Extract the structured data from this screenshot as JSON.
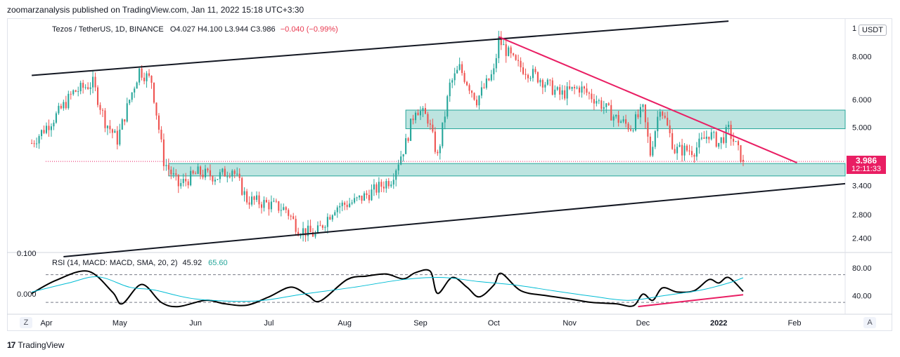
{
  "header": {
    "publisher": "zoomarzanalysis published on TradingView.com, Jan 11, 2022 15:18 UTC+3:30"
  },
  "legend": {
    "symbol": "Tezos / TetherUS, 1D, BINANCE",
    "ohlc": "O4.027 H4.100 L3.944 C3.986",
    "change": "−0.040 (−0.99%)",
    "currency": "USDT"
  },
  "last_price": {
    "value": "3.986",
    "countdown": "12:11:33"
  },
  "rsi_legend": {
    "label": "RSI (14, MACD: MACD, SMA, 20, 2)",
    "rsi_value": "45.92",
    "ma_value": "65.60"
  },
  "footer": {
    "brand": "TradingView"
  },
  "buttons": {
    "zoom_left": "Z",
    "zoom_right": "A"
  },
  "colors": {
    "up": "#26a69a",
    "down": "#ef5350",
    "zone_fill": "#b2dfdb",
    "zone_border": "#26a69a",
    "trend_pink": "#e91e63",
    "channel": "#131722",
    "rsi_line": "#000000",
    "rsi_ma": "#00bcd4"
  },
  "chart_data": [
    {
      "type": "candlestick",
      "scale": "log",
      "ylim": [
        2.2,
        10.2
      ],
      "yticks": [
        "8.000",
        "6.000",
        "5.000",
        "3.400",
        "2.800",
        "2.400"
      ],
      "ytick_values": [
        8.0,
        6.0,
        5.0,
        3.4,
        2.8,
        2.4
      ],
      "top_partial_tick": "1",
      "xticks": [
        "Apr",
        "May",
        "Jun",
        "Jul",
        "Aug",
        "Sep",
        "Oct",
        "Nov",
        "Dec",
        "2022",
        "Feb"
      ],
      "xtick_dates": [
        "2021-04-01",
        "2021-05-01",
        "2021-06-01",
        "2021-07-01",
        "2021-08-01",
        "2021-09-01",
        "2021-10-01",
        "2021-11-01",
        "2021-12-01",
        "2022-01-01",
        "2022-02-01"
      ],
      "close_waypoints": [
        [
          "2021-03-26",
          4.5
        ],
        [
          "2021-04-05",
          5.4
        ],
        [
          "2021-04-12",
          6.3
        ],
        [
          "2021-04-20",
          6.7
        ],
        [
          "2021-04-25",
          5.2
        ],
        [
          "2021-04-30",
          4.6
        ],
        [
          "2021-05-05",
          6.0
        ],
        [
          "2021-05-09",
          7.3
        ],
        [
          "2021-05-14",
          6.8
        ],
        [
          "2021-05-19",
          4.0
        ],
        [
          "2021-05-25",
          3.4
        ],
        [
          "2021-06-02",
          3.7
        ],
        [
          "2021-06-10",
          3.6
        ],
        [
          "2021-06-16",
          3.8
        ],
        [
          "2021-06-22",
          3.1
        ],
        [
          "2021-07-01",
          3.0
        ],
        [
          "2021-07-08",
          2.9
        ],
        [
          "2021-07-13",
          2.55
        ],
        [
          "2021-07-20",
          2.45
        ],
        [
          "2021-07-28",
          2.95
        ],
        [
          "2021-08-05",
          3.05
        ],
        [
          "2021-08-12",
          3.25
        ],
        [
          "2021-08-20",
          3.55
        ],
        [
          "2021-08-26",
          4.5
        ],
        [
          "2021-08-30",
          5.7
        ],
        [
          "2021-09-04",
          5.3
        ],
        [
          "2021-09-08",
          4.1
        ],
        [
          "2021-09-13",
          6.6
        ],
        [
          "2021-09-17",
          7.4
        ],
        [
          "2021-09-24",
          6.0
        ],
        [
          "2021-10-01",
          7.2
        ],
        [
          "2021-10-03",
          8.9
        ],
        [
          "2021-10-10",
          7.6
        ],
        [
          "2021-10-20",
          6.9
        ],
        [
          "2021-10-28",
          6.2
        ],
        [
          "2021-11-05",
          6.5
        ],
        [
          "2021-11-12",
          6.0
        ],
        [
          "2021-11-20",
          5.3
        ],
        [
          "2021-11-26",
          5.0
        ],
        [
          "2021-12-01",
          5.6
        ],
        [
          "2021-12-04",
          4.2
        ],
        [
          "2021-12-08",
          5.8
        ],
        [
          "2021-12-14",
          4.3
        ],
        [
          "2021-12-22",
          4.3
        ],
        [
          "2021-12-28",
          4.8
        ],
        [
          "2022-01-01",
          4.5
        ],
        [
          "2022-01-05",
          4.9
        ],
        [
          "2022-01-11",
          3.986
        ]
      ],
      "zones": [
        {
          "name": "upper-supply-zone",
          "from": "2021-08-26",
          "to_edge": true,
          "low": 4.95,
          "high": 5.6
        },
        {
          "name": "lower-demand-zone",
          "from": "2021-05-21",
          "to_edge": true,
          "low": 3.62,
          "high": 3.93
        }
      ],
      "trendlines": [
        {
          "name": "channel-upper",
          "from": [
            "2021-03-26",
            7.05
          ],
          "to": [
            "2022-01-05",
            10.1
          ]
        },
        {
          "name": "channel-lower",
          "from": [
            "2021-04-08",
            2.12
          ],
          "to_edge": 3.44
        },
        {
          "name": "descending-resistance",
          "from": [
            "2021-10-03",
            9.1
          ],
          "to": [
            "2022-02-02",
            3.95
          ]
        }
      ],
      "current_price": 3.986
    },
    {
      "type": "line",
      "panel": "RSI",
      "ylim": [
        15,
        100
      ],
      "yticks": [
        "80.00",
        "40.00"
      ],
      "ytick_values": [
        80,
        40
      ],
      "levels": [
        70,
        30
      ],
      "side_labels": [
        "0.100",
        "0.000"
      ],
      "series": [
        {
          "name": "RSI",
          "points": [
            [
              "2021-03-26",
              43
            ],
            [
              "2021-04-05",
              62
            ],
            [
              "2021-04-18",
              75
            ],
            [
              "2021-04-28",
              45
            ],
            [
              "2021-05-02",
              28
            ],
            [
              "2021-05-10",
              56
            ],
            [
              "2021-05-18",
              30
            ],
            [
              "2021-05-25",
              24
            ],
            [
              "2021-06-05",
              33
            ],
            [
              "2021-06-13",
              28
            ],
            [
              "2021-06-22",
              26
            ],
            [
              "2021-07-01",
              38
            ],
            [
              "2021-07-10",
              52
            ],
            [
              "2021-07-17",
              40
            ],
            [
              "2021-07-22",
              32
            ],
            [
              "2021-08-02",
              63
            ],
            [
              "2021-08-10",
              68
            ],
            [
              "2021-08-18",
              71
            ],
            [
              "2021-08-25",
              64
            ],
            [
              "2021-08-30",
              73
            ],
            [
              "2021-09-05",
              75
            ],
            [
              "2021-09-08",
              43
            ],
            [
              "2021-09-14",
              66
            ],
            [
              "2021-09-20",
              52
            ],
            [
              "2021-09-25",
              38
            ],
            [
              "2021-10-01",
              55
            ],
            [
              "2021-10-04",
              72
            ],
            [
              "2021-10-12",
              47
            ],
            [
              "2021-10-22",
              40
            ],
            [
              "2021-11-01",
              35
            ],
            [
              "2021-11-10",
              30
            ],
            [
              "2021-11-20",
              28
            ],
            [
              "2021-11-27",
              25
            ],
            [
              "2021-12-01",
              42
            ],
            [
              "2021-12-05",
              33
            ],
            [
              "2021-12-09",
              51
            ],
            [
              "2021-12-15",
              45
            ],
            [
              "2021-12-22",
              47
            ],
            [
              "2021-12-28",
              63
            ],
            [
              "2022-01-01",
              58
            ],
            [
              "2022-01-05",
              66
            ],
            [
              "2022-01-11",
              45.92
            ]
          ]
        },
        {
          "name": "MA",
          "points": [
            [
              "2021-03-26",
              45
            ],
            [
              "2021-04-10",
              58
            ],
            [
              "2021-04-22",
              67
            ],
            [
              "2021-05-05",
              52
            ],
            [
              "2021-05-15",
              48
            ],
            [
              "2021-06-01",
              35
            ],
            [
              "2021-06-25",
              32
            ],
            [
              "2021-07-15",
              42
            ],
            [
              "2021-08-05",
              52
            ],
            [
              "2021-08-25",
              63
            ],
            [
              "2021-09-10",
              66
            ],
            [
              "2021-09-25",
              60
            ],
            [
              "2021-10-10",
              55
            ],
            [
              "2021-10-25",
              47
            ],
            [
              "2021-11-10",
              39
            ],
            [
              "2021-11-25",
              33
            ],
            [
              "2021-12-10",
              40
            ],
            [
              "2021-12-25",
              48
            ],
            [
              "2022-01-05",
              58
            ],
            [
              "2022-01-11",
              65.6
            ]
          ]
        }
      ],
      "divergence_line": {
        "from": [
          "2021-11-29",
          24
        ],
        "to": [
          "2022-01-11",
          41
        ]
      }
    }
  ]
}
